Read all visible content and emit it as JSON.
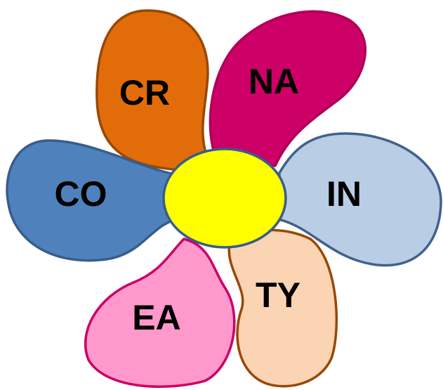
{
  "petals": [
    {
      "label": "CR"
    },
    {
      "label": "NA"
    },
    {
      "label": "IN"
    },
    {
      "label": "TY"
    },
    {
      "label": "EA"
    },
    {
      "label": "CO"
    }
  ]
}
